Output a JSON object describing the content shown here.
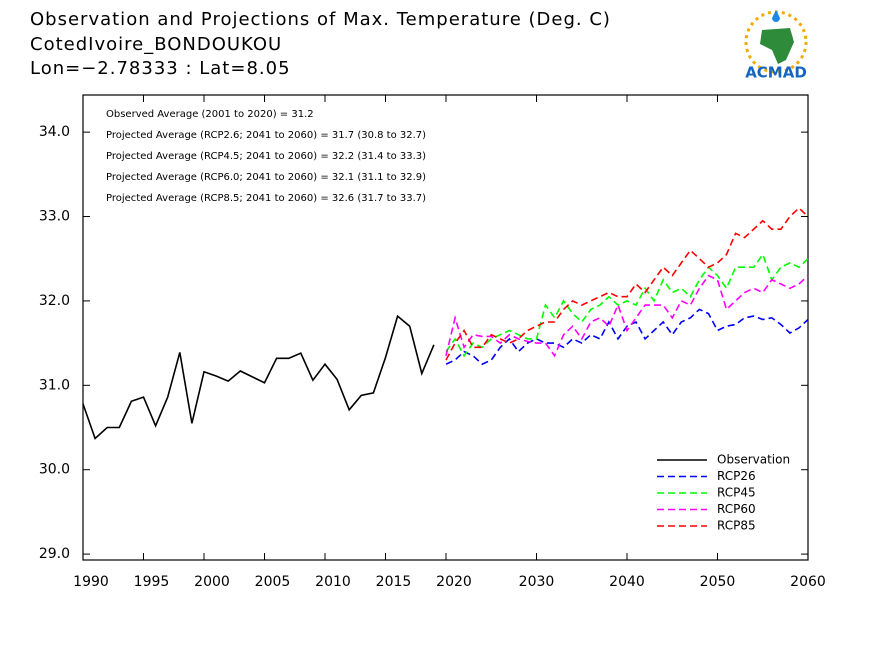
{
  "logo_text": "ACMAD",
  "chart_data": [
    {
      "type": "line",
      "title_lines": [
        "Observation and Projections of Max. Temperature (Deg. C)",
        "CotedIvoire_BONDOUKOU",
        "Lon=−2.78333 : Lat=8.05"
      ],
      "annotations": [
        "Observed Average (2001 to 2020) = 31.2",
        "Projected Average (RCP2.6; 2041 to 2060) = 31.7 (30.8 to 32.7)",
        "Projected Average (RCP4.5; 2041 to 2060) = 32.2 (31.4 to 33.3)",
        "Projected Average (RCP6.0; 2041 to 2060) = 32.1 (31.1 to 32.9)",
        "Projected Average (RCP8.5; 2041 to 2060) = 32.6 (31.7 to 33.7)"
      ],
      "xlim": [
        1990,
        2020
      ],
      "xticks": [
        1990,
        1995,
        2000,
        2005,
        2010,
        2015
      ],
      "ylim": [
        28.93,
        34.44
      ],
      "yticks": [
        {
          "value": 29,
          "label": "29.0"
        },
        {
          "value": 30,
          "label": "30.0"
        },
        {
          "value": 31,
          "label": "31.0"
        },
        {
          "value": 32,
          "label": "32.0"
        },
        {
          "value": 33,
          "label": "33.0"
        },
        {
          "value": 34,
          "label": "34.0"
        }
      ],
      "x": [
        1990,
        1991,
        1992,
        1993,
        1994,
        1995,
        1996,
        1997,
        1998,
        1999,
        2000,
        2001,
        2002,
        2003,
        2004,
        2005,
        2006,
        2007,
        2008,
        2009,
        2010,
        2011,
        2012,
        2013,
        2014,
        2015,
        2016,
        2017,
        2018,
        2019
      ],
      "series": [
        {
          "name": "Observation",
          "color": "#000000",
          "dashed": false,
          "values": [
            30.78,
            30.37,
            30.5,
            30.5,
            30.81,
            30.86,
            30.52,
            30.86,
            31.39,
            30.55,
            31.16,
            31.11,
            31.05,
            31.17,
            31.1,
            31.03,
            31.32,
            31.32,
            31.38,
            31.06,
            31.25,
            31.07,
            30.71,
            30.88,
            30.91,
            31.33,
            31.82,
            31.7,
            31.14,
            31.48
          ]
        }
      ]
    },
    {
      "type": "line",
      "xlim": [
        2020,
        2060
      ],
      "xticks": [
        2020,
        2030,
        2040,
        2050,
        2060
      ],
      "ylim": [
        28.93,
        34.44
      ],
      "x": [
        2020,
        2021,
        2022,
        2023,
        2024,
        2025,
        2026,
        2027,
        2028,
        2029,
        2030,
        2031,
        2032,
        2033,
        2034,
        2035,
        2036,
        2037,
        2038,
        2039,
        2040,
        2041,
        2042,
        2043,
        2044,
        2045,
        2046,
        2047,
        2048,
        2049,
        2050,
        2051,
        2052,
        2053,
        2054,
        2055,
        2056,
        2057,
        2058,
        2059,
        2060
      ],
      "series": [
        {
          "name": "RCP26",
          "color": "#0000ff",
          "dashed": true,
          "values": [
            31.25,
            31.3,
            31.4,
            31.35,
            31.25,
            31.3,
            31.45,
            31.55,
            31.4,
            31.5,
            31.55,
            31.5,
            31.5,
            31.45,
            31.55,
            31.5,
            31.6,
            31.55,
            31.75,
            31.55,
            31.7,
            31.75,
            31.55,
            31.65,
            31.75,
            31.6,
            31.75,
            31.8,
            31.9,
            31.85,
            31.65,
            31.7,
            31.72,
            31.8,
            31.82,
            31.78,
            31.8,
            31.72,
            31.62,
            31.68,
            31.78
          ]
        },
        {
          "name": "RCP45",
          "color": "#00ff00",
          "dashed": true,
          "values": [
            31.4,
            31.55,
            31.35,
            31.5,
            31.45,
            31.55,
            31.6,
            31.65,
            31.6,
            31.55,
            31.55,
            31.95,
            31.8,
            32.0,
            31.85,
            31.75,
            31.9,
            31.95,
            32.05,
            31.95,
            32.0,
            31.95,
            32.15,
            32.0,
            32.25,
            32.1,
            32.15,
            32.05,
            32.25,
            32.4,
            32.3,
            32.15,
            32.4,
            32.4,
            32.4,
            32.55,
            32.25,
            32.4,
            32.45,
            32.4,
            32.5
          ]
        },
        {
          "name": "RCP60",
          "color": "#ff00ff",
          "dashed": true,
          "values": [
            31.35,
            31.8,
            31.45,
            31.6,
            31.58,
            31.58,
            31.5,
            31.6,
            31.55,
            31.52,
            31.5,
            31.5,
            31.35,
            31.6,
            31.7,
            31.55,
            31.75,
            31.8,
            31.7,
            31.95,
            31.65,
            31.8,
            31.95,
            31.95,
            31.95,
            31.8,
            32.0,
            31.95,
            32.15,
            32.3,
            32.25,
            31.9,
            32.0,
            32.1,
            32.15,
            32.1,
            32.25,
            32.2,
            32.15,
            32.2,
            32.3
          ]
        },
        {
          "name": "RCP85",
          "color": "#ff0000",
          "dashed": true,
          "values": [
            31.3,
            31.5,
            31.65,
            31.45,
            31.45,
            31.6,
            31.55,
            31.5,
            31.55,
            31.65,
            31.7,
            31.75,
            31.75,
            31.9,
            32.0,
            31.95,
            32.0,
            32.05,
            32.1,
            32.05,
            32.05,
            32.2,
            32.1,
            32.25,
            32.4,
            32.3,
            32.45,
            32.6,
            32.5,
            32.4,
            32.45,
            32.55,
            32.8,
            32.75,
            32.85,
            32.95,
            32.85,
            32.85,
            33.0,
            33.1,
            33.0
          ]
        }
      ]
    }
  ]
}
